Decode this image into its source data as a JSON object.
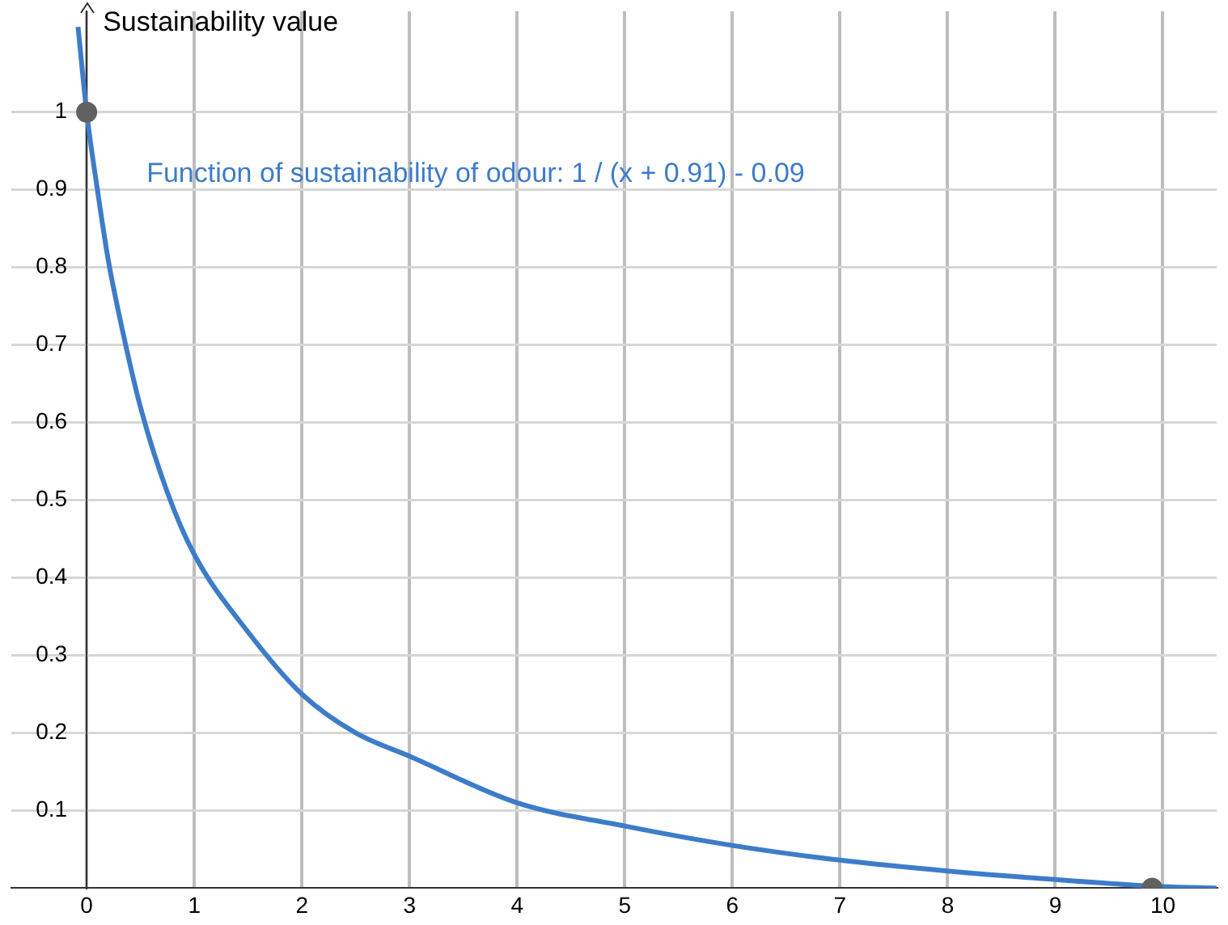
{
  "chart_data": {
    "type": "line",
    "ylabel": "Sustainability value",
    "xlim": [
      -0.7,
      10.5
    ],
    "ylim": [
      0,
      1.13
    ],
    "xticks": [
      0,
      1,
      2,
      3,
      4,
      5,
      6,
      7,
      8,
      9,
      10
    ],
    "yticks": [
      0.1,
      0.2,
      0.3,
      0.4,
      0.5,
      0.6,
      0.7,
      0.8,
      0.9,
      1
    ],
    "grid": true,
    "marker": "none",
    "series": [
      {
        "name": "Function of sustainability of odour: 1 / (x + 0.91) - 0.09",
        "color": "#3d7cc9",
        "x": [
          -0.08,
          0,
          0.1,
          0.2,
          0.3,
          0.5,
          0.75,
          1,
          1.5,
          2,
          2.5,
          3,
          4,
          5,
          6,
          7,
          8,
          9,
          10,
          10.5
        ],
        "values": [
          1.11,
          1.0,
          0.9,
          0.81,
          0.74,
          0.62,
          0.51,
          0.43,
          0.33,
          0.25,
          0.2,
          0.17,
          0.11,
          0.08,
          0.055,
          0.036,
          0.022,
          0.011,
          0.002,
          0
        ]
      },
      {
        "type": "scatter",
        "color": "#616161",
        "marker": "circle",
        "x": [
          0,
          9.9
        ],
        "values": [
          1,
          0
        ]
      }
    ]
  }
}
